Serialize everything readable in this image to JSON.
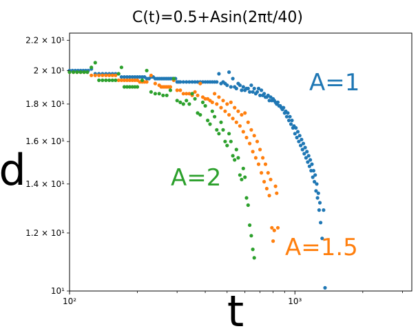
{
  "chart_data": {
    "type": "scatter",
    "title": "C(t)=0.5+Asin(2πt/40)",
    "xlabel": "t",
    "ylabel": "d",
    "x_scale": "log",
    "y_scale": "log",
    "xlim": [
      100,
      3300
    ],
    "ylim": [
      10,
      22.5
    ],
    "grid": false,
    "x_ticks": [
      {
        "value": 100,
        "label": "10²"
      },
      {
        "value": 1000,
        "label": "10³"
      }
    ],
    "y_ticks": [
      {
        "value": 10,
        "label": "10¹"
      },
      {
        "value": 12,
        "label": "1.2 × 10¹"
      },
      {
        "value": 14,
        "label": "1.4 × 10¹"
      },
      {
        "value": 16,
        "label": "1.6 × 10¹"
      },
      {
        "value": 18,
        "label": "1.8 × 10¹"
      },
      {
        "value": 20,
        "label": "2 × 10¹"
      },
      {
        "value": 22,
        "label": "2.2 × 10¹"
      }
    ],
    "series": [
      {
        "name": "A=1",
        "color": "#1f77b4",
        "points": [
          [
            100,
            20
          ],
          [
            103,
            20
          ],
          [
            106,
            20
          ],
          [
            109,
            20
          ],
          [
            112,
            20
          ],
          [
            115,
            20
          ],
          [
            118,
            20
          ],
          [
            121,
            20
          ],
          [
            125,
            20.1
          ],
          [
            130,
            19.8
          ],
          [
            135,
            19.8
          ],
          [
            140,
            19.8
          ],
          [
            145,
            19.8
          ],
          [
            150,
            19.8
          ],
          [
            155,
            19.8
          ],
          [
            160,
            19.8
          ],
          [
            165,
            19.8
          ],
          [
            170,
            19.6
          ],
          [
            175,
            19.6
          ],
          [
            180,
            19.6
          ],
          [
            185,
            19.6
          ],
          [
            190,
            19.6
          ],
          [
            195,
            19.6
          ],
          [
            200,
            19.6
          ],
          [
            205,
            19.6
          ],
          [
            210,
            19.6
          ],
          [
            215,
            19.6
          ],
          [
            220,
            19.5
          ],
          [
            225,
            19.5
          ],
          [
            230,
            19.6
          ],
          [
            235,
            19.6
          ],
          [
            240,
            19.5
          ],
          [
            245,
            19.5
          ],
          [
            250,
            19.5
          ],
          [
            255,
            19.5
          ],
          [
            260,
            19.5
          ],
          [
            265,
            19.5
          ],
          [
            270,
            19.5
          ],
          [
            275,
            19.5
          ],
          [
            280,
            19.5
          ],
          [
            285,
            19.5
          ],
          [
            290,
            19.5
          ],
          [
            295,
            19.5
          ],
          [
            300,
            19.3
          ],
          [
            305,
            19.3
          ],
          [
            310,
            19.3
          ],
          [
            320,
            19.3
          ],
          [
            330,
            19.3
          ],
          [
            340,
            19.3
          ],
          [
            350,
            19.3
          ],
          [
            360,
            19.3
          ],
          [
            370,
            19.3
          ],
          [
            380,
            19.3
          ],
          [
            390,
            19.3
          ],
          [
            400,
            19.3
          ],
          [
            410,
            19.3
          ],
          [
            420,
            19.3
          ],
          [
            430,
            19.3
          ],
          [
            440,
            19.3
          ],
          [
            450,
            19.3
          ],
          [
            460,
            19.8
          ],
          [
            470,
            19.2
          ],
          [
            480,
            19.3
          ],
          [
            490,
            19.2
          ],
          [
            500,
            19.1
          ],
          [
            510,
            19.9
          ],
          [
            520,
            19
          ],
          [
            530,
            19.5
          ],
          [
            540,
            19
          ],
          [
            550,
            18.9
          ],
          [
            560,
            19.2
          ],
          [
            570,
            19.1
          ],
          [
            580,
            18.8
          ],
          [
            590,
            19
          ],
          [
            600,
            18.8
          ],
          [
            610,
            18.9
          ],
          [
            620,
            18.9
          ],
          [
            630,
            18.7
          ],
          [
            640,
            19.1
          ],
          [
            650,
            18.7
          ],
          [
            660,
            18.9
          ],
          [
            670,
            18.6
          ],
          [
            680,
            18.7
          ],
          [
            690,
            18.9
          ],
          [
            700,
            18.5
          ],
          [
            710,
            18.8
          ],
          [
            720,
            18.5
          ],
          [
            730,
            18.6
          ],
          [
            740,
            18.4
          ],
          [
            750,
            18.4
          ],
          [
            760,
            18.5
          ],
          [
            770,
            18.2
          ],
          [
            780,
            18.4
          ],
          [
            790,
            18.2
          ],
          [
            800,
            18.3
          ],
          [
            810,
            18.2
          ],
          [
            820,
            18.1
          ],
          [
            830,
            18
          ],
          [
            840,
            18.1
          ],
          [
            850,
            17.9
          ],
          [
            860,
            17.9
          ],
          [
            870,
            17.8
          ],
          [
            880,
            17.7
          ],
          [
            890,
            17.8
          ],
          [
            900,
            17.5
          ],
          [
            910,
            17.6
          ],
          [
            920,
            17.3
          ],
          [
            930,
            17.5
          ],
          [
            940,
            17.1
          ],
          [
            950,
            17.3
          ],
          [
            960,
            16.9
          ],
          [
            970,
            17.1
          ],
          [
            980,
            16.7
          ],
          [
            990,
            16.8
          ],
          [
            1000,
            16.4
          ],
          [
            1010,
            16.7
          ],
          [
            1020,
            16.2
          ],
          [
            1030,
            16.5
          ],
          [
            1040,
            16
          ],
          [
            1050,
            16.3
          ],
          [
            1060,
            15.8
          ],
          [
            1070,
            16.1
          ],
          [
            1080,
            15.6
          ],
          [
            1090,
            15.9
          ],
          [
            1100,
            15.4
          ],
          [
            1110,
            15.7
          ],
          [
            1120,
            15.2
          ],
          [
            1130,
            15.5
          ],
          [
            1140,
            15
          ],
          [
            1150,
            15.3
          ],
          [
            1160,
            14.8
          ],
          [
            1170,
            15.1
          ],
          [
            1180,
            14.6
          ],
          [
            1190,
            14.9
          ],
          [
            1200,
            14.3
          ],
          [
            1210,
            14.6
          ],
          [
            1220,
            14.1
          ],
          [
            1230,
            14.4
          ],
          [
            1240,
            13.7
          ],
          [
            1250,
            14
          ],
          [
            1260,
            13.4
          ],
          [
            1270,
            13.6
          ],
          [
            1280,
            12.9
          ],
          [
            1290,
            13.2
          ],
          [
            1300,
            12.4
          ],
          [
            1320,
            11.8
          ],
          [
            1340,
            12.9
          ],
          [
            1360,
            10.1
          ]
        ]
      },
      {
        "name": "A=1.5",
        "color": "#ff7f0e",
        "points": [
          [
            100,
            19.9
          ],
          [
            104,
            19.9
          ],
          [
            108,
            19.9
          ],
          [
            112,
            19.9
          ],
          [
            116,
            19.9
          ],
          [
            120,
            19.9
          ],
          [
            125,
            19.7
          ],
          [
            130,
            19.7
          ],
          [
            135,
            19.7
          ],
          [
            140,
            19.7
          ],
          [
            145,
            19.7
          ],
          [
            150,
            19.7
          ],
          [
            155,
            19.7
          ],
          [
            160,
            19.7
          ],
          [
            165,
            19.4
          ],
          [
            170,
            19.4
          ],
          [
            175,
            19.4
          ],
          [
            180,
            19.4
          ],
          [
            185,
            19.4
          ],
          [
            190,
            19.4
          ],
          [
            195,
            19.4
          ],
          [
            200,
            19.4
          ],
          [
            205,
            19.3
          ],
          [
            210,
            19.3
          ],
          [
            215,
            19.3
          ],
          [
            220,
            19.3
          ],
          [
            230,
            19.7
          ],
          [
            240,
            19.2
          ],
          [
            250,
            19.1
          ],
          [
            255,
            19
          ],
          [
            260,
            19
          ],
          [
            265,
            19
          ],
          [
            270,
            19
          ],
          [
            275,
            19
          ],
          [
            280,
            19
          ],
          [
            290,
            19.4
          ],
          [
            300,
            18.8
          ],
          [
            310,
            18.8
          ],
          [
            320,
            18.6
          ],
          [
            330,
            18.6
          ],
          [
            340,
            18.6
          ],
          [
            350,
            18.5
          ],
          [
            360,
            18.7
          ],
          [
            370,
            18.5
          ],
          [
            380,
            19.2
          ],
          [
            390,
            18.4
          ],
          [
            400,
            18.3
          ],
          [
            410,
            18.3
          ],
          [
            420,
            18.2
          ],
          [
            430,
            18.1
          ],
          [
            440,
            18.6
          ],
          [
            450,
            18
          ],
          [
            460,
            18.4
          ],
          [
            470,
            17.8
          ],
          [
            480,
            18.2
          ],
          [
            490,
            17.6
          ],
          [
            500,
            18
          ],
          [
            510,
            17.4
          ],
          [
            520,
            18.1
          ],
          [
            530,
            17.2
          ],
          [
            540,
            17.8
          ],
          [
            550,
            17
          ],
          [
            560,
            17.6
          ],
          [
            570,
            16.8
          ],
          [
            580,
            17.4
          ],
          [
            590,
            16.5
          ],
          [
            600,
            17.5
          ],
          [
            610,
            16.2
          ],
          [
            620,
            17
          ],
          [
            630,
            15.9
          ],
          [
            640,
            16.6
          ],
          [
            650,
            15.5
          ],
          [
            660,
            16.3
          ],
          [
            670,
            15.2
          ],
          [
            680,
            16
          ],
          [
            690,
            14.9
          ],
          [
            700,
            15.6
          ],
          [
            710,
            14.5
          ],
          [
            720,
            15.2
          ],
          [
            730,
            14.1
          ],
          [
            740,
            14.9
          ],
          [
            750,
            13.8
          ],
          [
            760,
            14.5
          ],
          [
            770,
            13.5
          ],
          [
            780,
            14.2
          ],
          [
            790,
            12.2
          ],
          [
            800,
            11.7
          ],
          [
            810,
            12.1
          ],
          [
            820,
            13.9
          ],
          [
            830,
            13.6
          ],
          [
            840,
            12.2
          ],
          [
            850,
            9.9
          ]
        ]
      },
      {
        "name": "A=2",
        "color": "#2ca02c",
        "points": [
          [
            100,
            19.9
          ],
          [
            104,
            19.9
          ],
          [
            108,
            19.9
          ],
          [
            112,
            19.9
          ],
          [
            116,
            19.9
          ],
          [
            120,
            19.9
          ],
          [
            125,
            20.2
          ],
          [
            130,
            20.5
          ],
          [
            135,
            19.4
          ],
          [
            140,
            19.4
          ],
          [
            145,
            19.4
          ],
          [
            150,
            19.4
          ],
          [
            155,
            19.4
          ],
          [
            160,
            19.4
          ],
          [
            165,
            19.8
          ],
          [
            170,
            20.2
          ],
          [
            175,
            19
          ],
          [
            180,
            19
          ],
          [
            185,
            19
          ],
          [
            190,
            19
          ],
          [
            195,
            19
          ],
          [
            200,
            19
          ],
          [
            210,
            19.4
          ],
          [
            220,
            20
          ],
          [
            230,
            18.7
          ],
          [
            240,
            18.6
          ],
          [
            250,
            18.6
          ],
          [
            260,
            18.5
          ],
          [
            270,
            18.5
          ],
          [
            280,
            18.8
          ],
          [
            290,
            19.5
          ],
          [
            300,
            18.2
          ],
          [
            310,
            18.1
          ],
          [
            320,
            18
          ],
          [
            330,
            18.2
          ],
          [
            340,
            18
          ],
          [
            350,
            18.6
          ],
          [
            360,
            18.3
          ],
          [
            370,
            17.5
          ],
          [
            380,
            17.4
          ],
          [
            390,
            18.1
          ],
          [
            400,
            17.9
          ],
          [
            410,
            17.1
          ],
          [
            420,
            16.9
          ],
          [
            430,
            17.6
          ],
          [
            440,
            17.3
          ],
          [
            450,
            16.6
          ],
          [
            460,
            16.4
          ],
          [
            470,
            17
          ],
          [
            480,
            16.6
          ],
          [
            490,
            16
          ],
          [
            500,
            15.8
          ],
          [
            510,
            16.4
          ],
          [
            520,
            16
          ],
          [
            530,
            15.3
          ],
          [
            540,
            15.1
          ],
          [
            550,
            15.6
          ],
          [
            560,
            15.2
          ],
          [
            570,
            14.4
          ],
          [
            580,
            14.2
          ],
          [
            590,
            14.7
          ],
          [
            600,
            14.3
          ],
          [
            610,
            13.4
          ],
          [
            620,
            13.1
          ],
          [
            630,
            12.3
          ],
          [
            640,
            11.9
          ],
          [
            650,
            11.4
          ],
          [
            660,
            11.1
          ]
        ]
      }
    ],
    "annotations": [
      {
        "text": "A=1",
        "color": "#1f77b4"
      },
      {
        "text": "A=1.5",
        "color": "#ff7f0e"
      },
      {
        "text": "A=2",
        "color": "#2ca02c"
      }
    ]
  }
}
